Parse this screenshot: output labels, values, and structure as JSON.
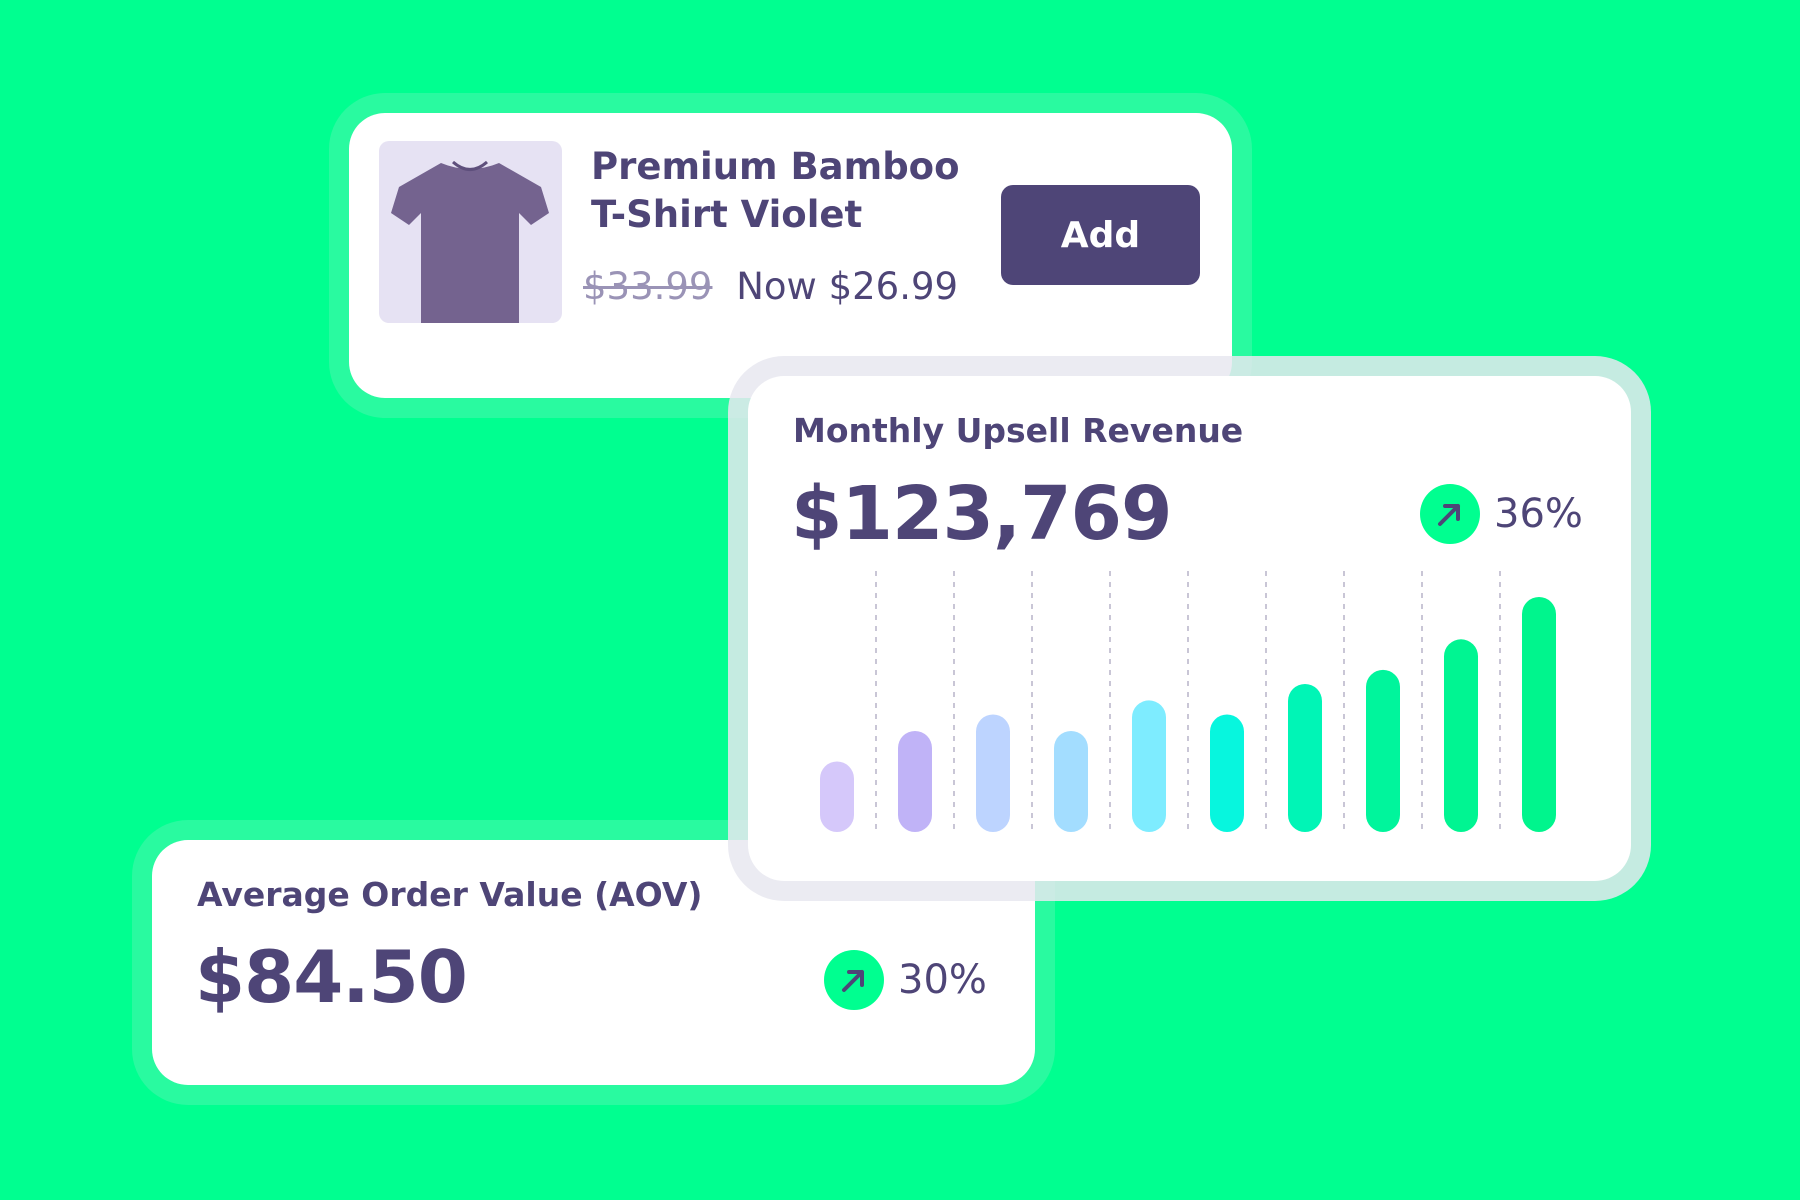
{
  "product": {
    "title_line1": "Premium Bamboo",
    "title_line2": "T-Shirt Violet",
    "old_price": "$33.99",
    "now_price": "Now $26.99",
    "add_label": "Add",
    "image_icon": "tshirt-icon",
    "shirt_color": "#74638F"
  },
  "revenue": {
    "label": "Monthly Upsell Revenue",
    "value": "$123,769",
    "trend_pct": "36%",
    "trend_icon": "arrow-up-right-icon"
  },
  "aov": {
    "label": "Average Order Value (AOV)",
    "value": "$84.50",
    "trend_pct": "30%",
    "trend_icon": "arrow-up-right-icon"
  },
  "colors": {
    "background": "#00FF90",
    "text": "#4E4577",
    "accent": "#00FF90"
  },
  "chart_data": {
    "type": "bar",
    "grid": "vertical dashed",
    "ylim": [
      0,
      100
    ],
    "values": [
      30,
      43,
      50,
      43,
      56,
      50,
      63,
      69,
      82,
      100
    ],
    "bar_colors": [
      "#D5C8FA",
      "#C0B3F7",
      "#BDD4FF",
      "#A3DDFF",
      "#7EECFF",
      "#07F6DE",
      "#00F5B6",
      "#00F59C",
      "#00F592",
      "#00F58D"
    ]
  }
}
